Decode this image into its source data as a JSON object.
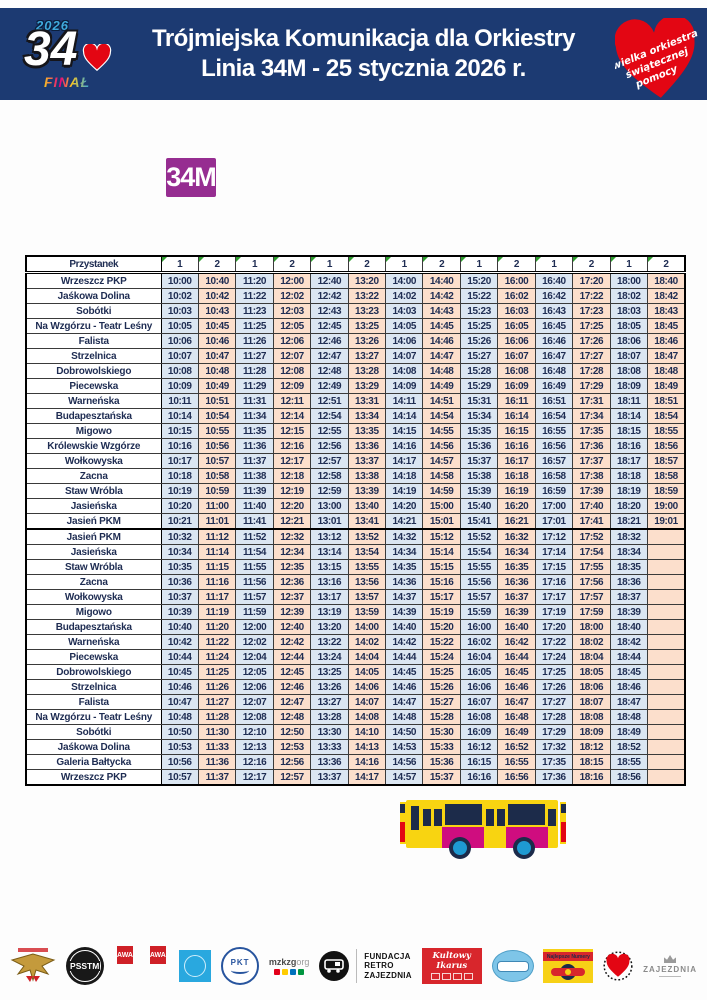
{
  "header": {
    "title_line1": "Trójmiejska Komunikacja dla Orkiestry",
    "title_line2": "Linia 34M - 25 stycznia 2026 r.",
    "logo": {
      "year": "2026",
      "number": "34",
      "final": "FINAŁ"
    },
    "heart": {
      "line1": "wielka orkiestra",
      "line2": "świątecznej",
      "line3": "pomocy"
    }
  },
  "line_badge": "34M",
  "colors": {
    "banner_navy": "#1c3a72",
    "badge_purple": "#962d91",
    "cell_blue": "#dbe6f2",
    "cell_peach": "#fcdfcc",
    "wosp_red": "#e30613",
    "marker_green": "#2f9e2f"
  },
  "timetable": {
    "stop_header": "Przystanek",
    "column_headers": [
      "1",
      "2",
      "1",
      "2",
      "1",
      "2",
      "1",
      "2",
      "1",
      "2",
      "1",
      "2",
      "1",
      "2"
    ],
    "sections": [
      {
        "rows": [
          {
            "stop": "Wrzeszcz PKP",
            "times": [
              "10:00",
              "10:40",
              "11:20",
              "12:00",
              "12:40",
              "13:20",
              "14:00",
              "14:40",
              "15:20",
              "16:00",
              "16:40",
              "17:20",
              "18:00",
              "18:40"
            ]
          },
          {
            "stop": "Jaśkowa Dolina",
            "times": [
              "10:02",
              "10:42",
              "11:22",
              "12:02",
              "12:42",
              "13:22",
              "14:02",
              "14:42",
              "15:22",
              "16:02",
              "16:42",
              "17:22",
              "18:02",
              "18:42"
            ]
          },
          {
            "stop": "Sobótki",
            "times": [
              "10:03",
              "10:43",
              "11:23",
              "12:03",
              "12:43",
              "13:23",
              "14:03",
              "14:43",
              "15:23",
              "16:03",
              "16:43",
              "17:23",
              "18:03",
              "18:43"
            ]
          },
          {
            "stop": "Na Wzgórzu - Teatr Leśny",
            "times": [
              "10:05",
              "10:45",
              "11:25",
              "12:05",
              "12:45",
              "13:25",
              "14:05",
              "14:45",
              "15:25",
              "16:05",
              "16:45",
              "17:25",
              "18:05",
              "18:45"
            ]
          },
          {
            "stop": "Falista",
            "times": [
              "10:06",
              "10:46",
              "11:26",
              "12:06",
              "12:46",
              "13:26",
              "14:06",
              "14:46",
              "15:26",
              "16:06",
              "16:46",
              "17:26",
              "18:06",
              "18:46"
            ]
          },
          {
            "stop": "Strzelnica",
            "times": [
              "10:07",
              "10:47",
              "11:27",
              "12:07",
              "12:47",
              "13:27",
              "14:07",
              "14:47",
              "15:27",
              "16:07",
              "16:47",
              "17:27",
              "18:07",
              "18:47"
            ]
          },
          {
            "stop": "Dobrowolskiego",
            "times": [
              "10:08",
              "10:48",
              "11:28",
              "12:08",
              "12:48",
              "13:28",
              "14:08",
              "14:48",
              "15:28",
              "16:08",
              "16:48",
              "17:28",
              "18:08",
              "18:48"
            ]
          },
          {
            "stop": "Piecewska",
            "times": [
              "10:09",
              "10:49",
              "11:29",
              "12:09",
              "12:49",
              "13:29",
              "14:09",
              "14:49",
              "15:29",
              "16:09",
              "16:49",
              "17:29",
              "18:09",
              "18:49"
            ]
          },
          {
            "stop": "Warneńska",
            "times": [
              "10:11",
              "10:51",
              "11:31",
              "12:11",
              "12:51",
              "13:31",
              "14:11",
              "14:51",
              "15:31",
              "16:11",
              "16:51",
              "17:31",
              "18:11",
              "18:51"
            ]
          },
          {
            "stop": "Budapesztańska",
            "times": [
              "10:14",
              "10:54",
              "11:34",
              "12:14",
              "12:54",
              "13:34",
              "14:14",
              "14:54",
              "15:34",
              "16:14",
              "16:54",
              "17:34",
              "18:14",
              "18:54"
            ]
          },
          {
            "stop": "Migowo",
            "times": [
              "10:15",
              "10:55",
              "11:35",
              "12:15",
              "12:55",
              "13:35",
              "14:15",
              "14:55",
              "15:35",
              "16:15",
              "16:55",
              "17:35",
              "18:15",
              "18:55"
            ]
          },
          {
            "stop": "Królewskie Wzgórze",
            "times": [
              "10:16",
              "10:56",
              "11:36",
              "12:16",
              "12:56",
              "13:36",
              "14:16",
              "14:56",
              "15:36",
              "16:16",
              "16:56",
              "17:36",
              "18:16",
              "18:56"
            ]
          },
          {
            "stop": "Wołkowyska",
            "times": [
              "10:17",
              "10:57",
              "11:37",
              "12:17",
              "12:57",
              "13:37",
              "14:17",
              "14:57",
              "15:37",
              "16:17",
              "16:57",
              "17:37",
              "18:17",
              "18:57"
            ]
          },
          {
            "stop": "Zacna",
            "times": [
              "10:18",
              "10:58",
              "11:38",
              "12:18",
              "12:58",
              "13:38",
              "14:18",
              "14:58",
              "15:38",
              "16:18",
              "16:58",
              "17:38",
              "18:18",
              "18:58"
            ]
          },
          {
            "stop": "Staw Wróbla",
            "times": [
              "10:19",
              "10:59",
              "11:39",
              "12:19",
              "12:59",
              "13:39",
              "14:19",
              "14:59",
              "15:39",
              "16:19",
              "16:59",
              "17:39",
              "18:19",
              "18:59"
            ]
          },
          {
            "stop": "Jasieńska",
            "times": [
              "10:20",
              "11:00",
              "11:40",
              "12:20",
              "13:00",
              "13:40",
              "14:20",
              "15:00",
              "15:40",
              "16:20",
              "17:00",
              "17:40",
              "18:20",
              "19:00"
            ]
          },
          {
            "stop": "Jasień PKM",
            "times": [
              "10:21",
              "11:01",
              "11:41",
              "12:21",
              "13:01",
              "13:41",
              "14:21",
              "15:01",
              "15:41",
              "16:21",
              "17:01",
              "17:41",
              "18:21",
              "19:01"
            ]
          }
        ]
      },
      {
        "rows": [
          {
            "stop": "Jasień PKM",
            "times": [
              "10:32",
              "11:12",
              "11:52",
              "12:32",
              "13:12",
              "13:52",
              "14:32",
              "15:12",
              "15:52",
              "16:32",
              "17:12",
              "17:52",
              "18:32",
              ""
            ]
          },
          {
            "stop": "Jasieńska",
            "times": [
              "10:34",
              "11:14",
              "11:54",
              "12:34",
              "13:14",
              "13:54",
              "14:34",
              "15:14",
              "15:54",
              "16:34",
              "17:14",
              "17:54",
              "18:34",
              ""
            ]
          },
          {
            "stop": "Staw Wróbla",
            "times": [
              "10:35",
              "11:15",
              "11:55",
              "12:35",
              "13:15",
              "13:55",
              "14:35",
              "15:15",
              "15:55",
              "16:35",
              "17:15",
              "17:55",
              "18:35",
              ""
            ]
          },
          {
            "stop": "Zacna",
            "times": [
              "10:36",
              "11:16",
              "11:56",
              "12:36",
              "13:16",
              "13:56",
              "14:36",
              "15:16",
              "15:56",
              "16:36",
              "17:16",
              "17:56",
              "18:36",
              ""
            ]
          },
          {
            "stop": "Wołkowyska",
            "times": [
              "10:37",
              "11:17",
              "11:57",
              "12:37",
              "13:17",
              "13:57",
              "14:37",
              "15:17",
              "15:57",
              "16:37",
              "17:17",
              "17:57",
              "18:37",
              ""
            ]
          },
          {
            "stop": "Migowo",
            "times": [
              "10:39",
              "11:19",
              "11:59",
              "12:39",
              "13:19",
              "13:59",
              "14:39",
              "15:19",
              "15:59",
              "16:39",
              "17:19",
              "17:59",
              "18:39",
              ""
            ]
          },
          {
            "stop": "Budapesztańska",
            "times": [
              "10:40",
              "11:20",
              "12:00",
              "12:40",
              "13:20",
              "14:00",
              "14:40",
              "15:20",
              "16:00",
              "16:40",
              "17:20",
              "18:00",
              "18:40",
              ""
            ]
          },
          {
            "stop": "Warneńska",
            "times": [
              "10:42",
              "11:22",
              "12:02",
              "12:42",
              "13:22",
              "14:02",
              "14:42",
              "15:22",
              "16:02",
              "16:42",
              "17:22",
              "18:02",
              "18:42",
              ""
            ]
          },
          {
            "stop": "Piecewska",
            "times": [
              "10:44",
              "11:24",
              "12:04",
              "12:44",
              "13:24",
              "14:04",
              "14:44",
              "15:24",
              "16:04",
              "16:44",
              "17:24",
              "18:04",
              "18:44",
              ""
            ]
          },
          {
            "stop": "Dobrowolskiego",
            "times": [
              "10:45",
              "11:25",
              "12:05",
              "12:45",
              "13:25",
              "14:05",
              "14:45",
              "15:25",
              "16:05",
              "16:45",
              "17:25",
              "18:05",
              "18:45",
              ""
            ]
          },
          {
            "stop": "Strzelnica",
            "times": [
              "10:46",
              "11:26",
              "12:06",
              "12:46",
              "13:26",
              "14:06",
              "14:46",
              "15:26",
              "16:06",
              "16:46",
              "17:26",
              "18:06",
              "18:46",
              ""
            ]
          },
          {
            "stop": "Falista",
            "times": [
              "10:47",
              "11:27",
              "12:07",
              "12:47",
              "13:27",
              "14:07",
              "14:47",
              "15:27",
              "16:07",
              "16:47",
              "17:27",
              "18:07",
              "18:47",
              ""
            ]
          },
          {
            "stop": "Na Wzgórzu - Teatr Leśny",
            "times": [
              "10:48",
              "11:28",
              "12:08",
              "12:48",
              "13:28",
              "14:08",
              "14:48",
              "15:28",
              "16:08",
              "16:48",
              "17:28",
              "18:08",
              "18:48",
              ""
            ]
          },
          {
            "stop": "Sobótki",
            "times": [
              "10:50",
              "11:30",
              "12:10",
              "12:50",
              "13:30",
              "14:10",
              "14:50",
              "15:30",
              "16:09",
              "16:49",
              "17:29",
              "18:09",
              "18:49",
              ""
            ]
          },
          {
            "stop": "Jaśkowa Dolina",
            "times": [
              "10:53",
              "11:33",
              "12:13",
              "12:53",
              "13:33",
              "14:13",
              "14:53",
              "15:33",
              "16:12",
              "16:52",
              "17:32",
              "18:12",
              "18:52",
              ""
            ]
          },
          {
            "stop": "Galeria Bałtycka",
            "times": [
              "10:56",
              "11:36",
              "12:16",
              "12:56",
              "13:36",
              "14:16",
              "14:56",
              "15:36",
              "16:15",
              "16:55",
              "17:35",
              "18:15",
              "18:55",
              ""
            ]
          },
          {
            "stop": "Wrzeszcz PKP",
            "times": [
              "10:57",
              "11:37",
              "12:17",
              "12:57",
              "13:37",
              "14:17",
              "14:57",
              "15:37",
              "16:16",
              "16:56",
              "17:36",
              "18:16",
              "18:56",
              ""
            ]
          }
        ]
      }
    ]
  },
  "footer": {
    "psstm": "PSSTM",
    "awa": "AWA",
    "pkt": "PKT",
    "mzkzg": "mzkzg",
    "mzkzg_suffix": "org",
    "fundacja_line1": "FUNDACJA",
    "fundacja_line2": "RETRO",
    "fundacja_line3": "ZAJEZDNIA",
    "kultowy_line1": "Kultowy",
    "kultowy_line2": "Ikarus",
    "najlepsze": "Najlepsze Numery",
    "zajezdnia": "ZAJEZDNIA"
  }
}
